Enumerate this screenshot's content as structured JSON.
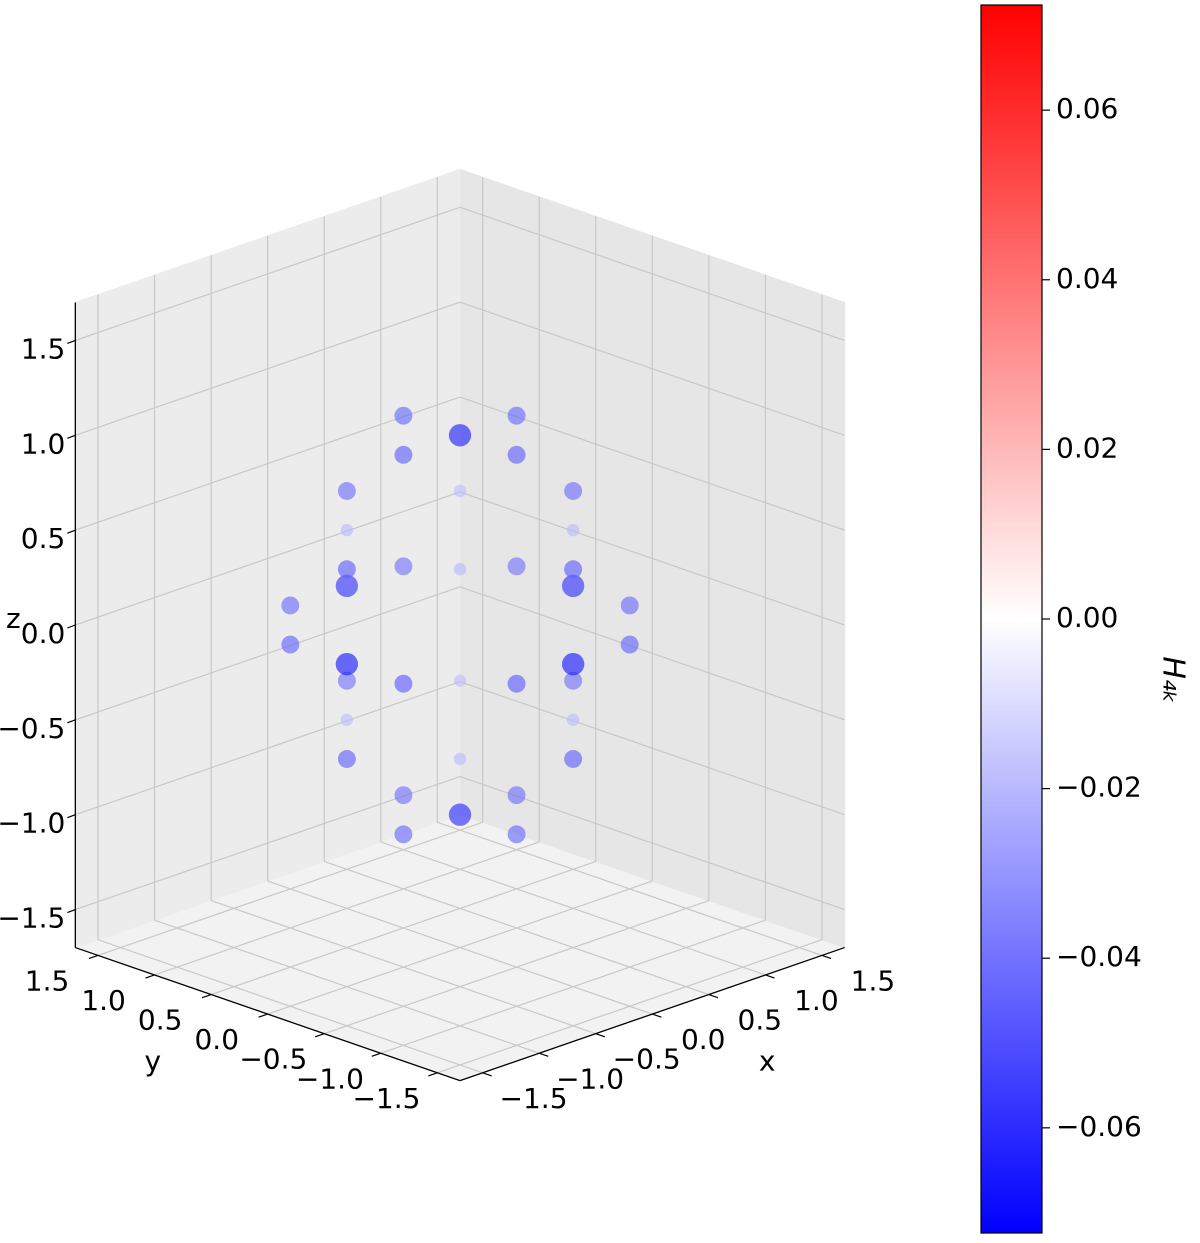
{
  "chart_data": {
    "type": "scatter3d",
    "xlabel": "x",
    "ylabel": "y",
    "zlabel": "z",
    "xlim": [
      -1.7,
      1.7
    ],
    "ylim": [
      -1.7,
      1.7
    ],
    "zlim": [
      -1.7,
      1.7
    ],
    "xticks": [
      {
        "value": -1.5,
        "label": "−1.5"
      },
      {
        "value": -1.0,
        "label": "−1.0"
      },
      {
        "value": -0.5,
        "label": "−0.5"
      },
      {
        "value": 0,
        "label": "0.0"
      },
      {
        "value": 0.5,
        "label": "0.5"
      },
      {
        "value": 1.0,
        "label": "1.0"
      },
      {
        "value": 1.5,
        "label": "1.5"
      }
    ],
    "yticks": [
      {
        "value": -1.5,
        "label": "−1.5"
      },
      {
        "value": -1.0,
        "label": "−1.0"
      },
      {
        "value": -0.5,
        "label": "−0.5"
      },
      {
        "value": 0,
        "label": "0.0"
      },
      {
        "value": 0.5,
        "label": "0.5"
      },
      {
        "value": 1.0,
        "label": "1.0"
      },
      {
        "value": 1.5,
        "label": "1.5"
      }
    ],
    "zticks": [
      {
        "value": -1.5,
        "label": "−1.5"
      },
      {
        "value": -1.0,
        "label": "−1.0"
      },
      {
        "value": -0.5,
        "label": "−0.5"
      },
      {
        "value": 0,
        "label": "0.0"
      },
      {
        "value": 0.5,
        "label": "0.5"
      },
      {
        "value": 1.0,
        "label": "1.0"
      },
      {
        "value": 1.5,
        "label": "1.5"
      }
    ],
    "x": [
      1,
      -1,
      0,
      0,
      0,
      0,
      1,
      1,
      -1,
      -1,
      1,
      1,
      -1,
      -1,
      0.5,
      -0.5,
      0.5,
      -0.5,
      0,
      0,
      0,
      0,
      0.5,
      -0.5,
      0.5,
      -0.5,
      0,
      0,
      0,
      0,
      0.5,
      0.5,
      0.5,
      0.5,
      -0.5,
      -0.5,
      -0.5,
      -0.5
    ],
    "y": [
      0,
      0,
      1,
      -1,
      0,
      0,
      0.5,
      -0.5,
      0.5,
      -0.5,
      0,
      0,
      0,
      0,
      1,
      1,
      -1,
      -1,
      1,
      1,
      -1,
      -1,
      0,
      0,
      0,
      0,
      0.5,
      -0.5,
      0.5,
      -0.5,
      0.5,
      0.5,
      -0.5,
      -0.5,
      0.5,
      0.5,
      -0.5,
      -0.5
    ],
    "z": [
      0,
      0,
      0,
      0,
      1,
      -1,
      0,
      0,
      0,
      0,
      0.5,
      -0.5,
      0.5,
      -0.5,
      0,
      0,
      0,
      0,
      0.5,
      -0.5,
      0.5,
      -0.5,
      1,
      1,
      -1,
      -1,
      1,
      1,
      -1,
      -1,
      0.5,
      -0.5,
      0.5,
      -0.5,
      0.5,
      -0.5,
      0.5,
      -0.5
    ],
    "values": [
      -0.065,
      -0.065,
      -0.065,
      -0.065,
      -0.065,
      -0.065,
      -0.045,
      -0.045,
      -0.045,
      -0.045,
      -0.045,
      -0.045,
      -0.045,
      -0.045,
      -0.045,
      -0.045,
      -0.045,
      -0.045,
      -0.045,
      -0.045,
      -0.045,
      -0.045,
      -0.045,
      -0.045,
      -0.045,
      -0.045,
      -0.045,
      -0.045,
      -0.045,
      -0.045,
      -0.02,
      -0.02,
      -0.02,
      -0.02,
      -0.02,
      -0.02,
      -0.02,
      -0.02
    ],
    "colorbar": {
      "label": "H₄ₖ",
      "lim": [
        -0.0724,
        0.0724
      ],
      "ticks": [
        {
          "value": -0.06,
          "label": "−0.06"
        },
        {
          "value": -0.04,
          "label": "−0.04"
        },
        {
          "value": -0.02,
          "label": "−0.02"
        },
        {
          "value": 0,
          "label": "0.00"
        },
        {
          "value": 0.02,
          "label": "0.02"
        },
        {
          "value": 0.04,
          "label": "0.04"
        },
        {
          "value": 0.06,
          "label": "0.06"
        }
      ],
      "cmap": [
        "#0000ff",
        "#ffffff",
        "#ff0000"
      ]
    }
  }
}
